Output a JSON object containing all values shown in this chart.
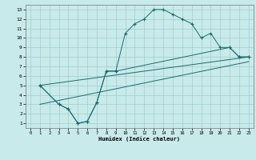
{
  "xlabel": "Humidex (Indice chaleur)",
  "bg_color": "#c8eaea",
  "grid_color": "#a0cccc",
  "line_color": "#1a6b6b",
  "xlim": [
    -0.5,
    23.5
  ],
  "ylim": [
    0.5,
    13.5
  ],
  "xticks": [
    0,
    1,
    2,
    3,
    4,
    5,
    6,
    7,
    8,
    9,
    10,
    11,
    12,
    13,
    14,
    15,
    16,
    17,
    18,
    19,
    20,
    21,
    22,
    23
  ],
  "yticks": [
    1,
    2,
    3,
    4,
    5,
    6,
    7,
    8,
    9,
    10,
    11,
    12,
    13
  ],
  "line1_x": [
    1,
    3,
    4,
    5,
    6,
    7,
    8,
    9,
    10,
    11,
    12,
    13,
    14,
    15,
    16,
    17,
    18,
    19,
    20,
    21,
    22,
    23
  ],
  "line1_y": [
    5,
    3,
    2.5,
    1,
    1.2,
    3.2,
    6.5,
    6.5,
    10.5,
    11.5,
    12,
    13,
    13,
    12.5,
    12,
    11.5,
    10,
    10.5,
    9,
    9,
    8,
    8
  ],
  "line2_x": [
    1,
    3,
    4,
    5,
    6,
    7,
    8,
    9,
    21,
    22,
    23
  ],
  "line2_y": [
    5,
    3,
    2.5,
    1,
    1.2,
    3.2,
    6.5,
    6.5,
    9,
    8,
    8
  ],
  "line3_x": [
    1,
    23
  ],
  "line3_y": [
    5,
    8
  ],
  "line4_x": [
    1,
    23
  ],
  "line4_y": [
    3,
    7.5
  ]
}
